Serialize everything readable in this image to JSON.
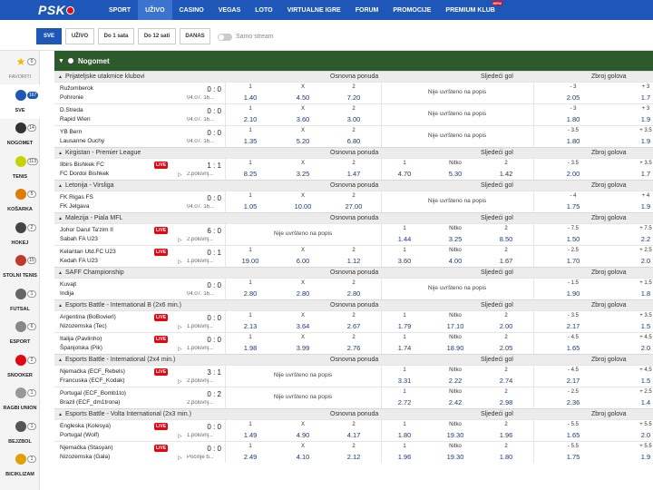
{
  "brand": {
    "logo": "PSK"
  },
  "nav": [
    {
      "label": "SPORT"
    },
    {
      "label": "UŽIVO"
    },
    {
      "label": "CASINO"
    },
    {
      "label": "VEGAS"
    },
    {
      "label": "LOTO"
    },
    {
      "label": "VIRTUALNE IGRE"
    },
    {
      "label": "FORUM"
    },
    {
      "label": "PROMOCIJE"
    },
    {
      "label": "PREMIUM KLUB"
    }
  ],
  "nav_active": "UŽIVO",
  "nav_badge": "NEW",
  "filters": [
    {
      "label": "SVE"
    },
    {
      "label": "UŽIVO"
    },
    {
      "label": "Do 1 sata"
    },
    {
      "label": "Do 12 sati"
    },
    {
      "label": "DANAS"
    }
  ],
  "stream_toggle": "Samo stream",
  "sidebar": [
    {
      "label": "FAVORITI",
      "count": "0",
      "icon": "star-icon"
    },
    {
      "label": "SVE",
      "count": "167",
      "icon": "all-sports-icon"
    },
    {
      "label": "NOGOMET",
      "count": "14",
      "icon": "football-icon"
    },
    {
      "label": "TENIS",
      "count": "113",
      "icon": "tennis-icon"
    },
    {
      "label": "KOŠARKA",
      "count": "5",
      "icon": "basketball-icon"
    },
    {
      "label": "HOKEJ",
      "count": "2",
      "icon": "hockey-icon"
    },
    {
      "label": "STOLNI TENIS",
      "count": "15",
      "icon": "table-tennis-icon"
    },
    {
      "label": "FUTSAL",
      "count": "1",
      "icon": "futsal-icon"
    },
    {
      "label": "ESPORT",
      "count": "6",
      "icon": "esport-icon"
    },
    {
      "label": "SNOOKER",
      "count": "2",
      "icon": "snooker-icon"
    },
    {
      "label": "RAGBI UNION",
      "count": "1",
      "icon": "rugby-icon"
    },
    {
      "label": "BEJZBOL",
      "count": "1",
      "icon": "baseball-icon"
    },
    {
      "label": "BICIKLIZAM",
      "count": "1",
      "icon": "cycling-icon"
    }
  ],
  "sport_header": "Nogomet",
  "col_headers": {
    "main": "Osnovna ponuda",
    "next": "Sljedeći gol",
    "total": "Zbroj golova"
  },
  "not_listed": "Nije uvršteno na popis",
  "leagues": [
    {
      "name": "Prijateljske utakmice klubovi",
      "matches": [
        {
          "t1": "Ružomberok",
          "t2": "Pohronie",
          "score": "0 : 0",
          "date": "04.07. 16...",
          "live": false,
          "main": [
            "1",
            "1.40",
            "X",
            "4.50",
            "2",
            "7.20"
          ],
          "next": null,
          "total": [
            "- 3",
            "2.05",
            "+ 3",
            "1.7"
          ]
        },
        {
          "t1": "D.Streda",
          "t2": "Rapid Wien",
          "score": "0 : 0",
          "date": "04.07. 16...",
          "live": false,
          "main": [
            "1",
            "2.10",
            "X",
            "3.60",
            "2",
            "3.00"
          ],
          "next": null,
          "total": [
            "- 3",
            "1.80",
            "+ 3",
            "1.9"
          ]
        },
        {
          "t1": "YB Bern",
          "t2": "Lausanne Ouchy",
          "score": "0 : 0",
          "date": "04.07. 16...",
          "live": false,
          "main": [
            "1",
            "1.35",
            "X",
            "5.20",
            "2",
            "6.80"
          ],
          "next": null,
          "total": [
            "- 3.5",
            "1.80",
            "+ 3.5",
            "1.9"
          ]
        }
      ]
    },
    {
      "name": "Kirgistan - Premier League",
      "matches": [
        {
          "t1": "Ilbirs Bishkek FC",
          "t2": "FC Dordoi Bishkek",
          "score": "1 : 1",
          "date": "2.poluvrij...",
          "live": true,
          "main": [
            "1",
            "8.25",
            "X",
            "3.25",
            "2",
            "1.47"
          ],
          "next": [
            "1",
            "4.70",
            "Nitko",
            "5.30",
            "2",
            "1.42"
          ],
          "total": [
            "- 3.5",
            "2.00",
            "+ 3.5",
            "1.7"
          ]
        }
      ]
    },
    {
      "name": "Letonija - Virsliga",
      "matches": [
        {
          "t1": "FK Rigas FS",
          "t2": "FK Jelgava",
          "score": "0 : 0",
          "date": "04.07. 16...",
          "live": false,
          "main": [
            "1",
            "1.05",
            "X",
            "10.00",
            "2",
            "27.00"
          ],
          "next": null,
          "total": [
            "- 4",
            "1.75",
            "+ 4",
            "1.9"
          ]
        }
      ]
    },
    {
      "name": "Malezija - Piala MFL",
      "matches": [
        {
          "t1": "Johor Darul Ta'zim II",
          "t2": "Sabah FA U23",
          "score": "6 : 0",
          "date": "2.poluvrij...",
          "live": true,
          "main": null,
          "next": [
            "1",
            "1.44",
            "Nitko",
            "3.25",
            "2",
            "8.50"
          ],
          "total": [
            "- 7.5",
            "1.50",
            "+ 7.5",
            "2.2"
          ]
        },
        {
          "t1": "Kelantan Utd.FC U23",
          "t2": "Kedah FA U23",
          "score": "0 : 1",
          "date": "1.poluvrij...",
          "live": true,
          "main": [
            "1",
            "19.00",
            "X",
            "6.00",
            "2",
            "1.12"
          ],
          "next": [
            "1",
            "3.60",
            "Nitko",
            "4.00",
            "2",
            "1.67"
          ],
          "total": [
            "- 2.5",
            "1.70",
            "+ 2.5",
            "2.0"
          ]
        }
      ]
    },
    {
      "name": "SAFF Championship",
      "matches": [
        {
          "t1": "Kuvajt",
          "t2": "Indija",
          "score": "0 : 0",
          "date": "04.07. 16...",
          "live": false,
          "main": [
            "1",
            "2.80",
            "X",
            "2.80",
            "2",
            "2.80"
          ],
          "next": null,
          "total": [
            "- 1.5",
            "1.90",
            "+ 1.5",
            "1.8"
          ]
        }
      ]
    },
    {
      "name": "Esports Battle - International B (2x6 min.)",
      "matches": [
        {
          "t1": "Argentina (BoBovierl)",
          "t2": "Nizozemska (Tec)",
          "score": "0 : 0",
          "date": "1.poluvrij...",
          "live": true,
          "main": [
            "1",
            "2.13",
            "X",
            "3.64",
            "2",
            "2.67"
          ],
          "next": [
            "1",
            "1.79",
            "Nitko",
            "17.10",
            "2",
            "2.00"
          ],
          "total": [
            "- 3.5",
            "2.17",
            "+ 3.5",
            "1.5"
          ]
        },
        {
          "t1": "Italija (Pavlinho)",
          "t2": "Španjolska (Pik)",
          "score": "0 : 0",
          "date": "1.poluvrij...",
          "live": true,
          "main": [
            "1",
            "1.98",
            "X",
            "3.99",
            "2",
            "2.76"
          ],
          "next": [
            "1",
            "1.74",
            "Nitko",
            "18.90",
            "2",
            "2.05"
          ],
          "total": [
            "- 4.5",
            "1.65",
            "+ 4.5",
            "2.0"
          ]
        }
      ]
    },
    {
      "name": "Esports Battle - International (2x4 min.)",
      "matches": [
        {
          "t1": "Njemačka (ECF_Rebels)",
          "t2": "Francuska (ECF_Kodak)",
          "score": "3 : 1",
          "date": "2.poluvrij...",
          "live": true,
          "main": null,
          "next": [
            "1",
            "3.31",
            "Nitko",
            "2.22",
            "2",
            "2.74"
          ],
          "total": [
            "- 4.5",
            "2.17",
            "+ 4.5",
            "1.5"
          ]
        },
        {
          "t1": "Portugal (ECF_Bomb1to)",
          "t2": "Brazil (ECF_dm1trona)",
          "score": "0 : 2",
          "date": "2.poluvrij...",
          "live": false,
          "main": null,
          "next": [
            "1",
            "2.72",
            "Nitko",
            "2.42",
            "2",
            "2.98"
          ],
          "total": [
            "- 2.5",
            "2.36",
            "+ 2.5",
            "1.4"
          ]
        }
      ]
    },
    {
      "name": "Esports Battle - Volta International (2x3 min.)",
      "matches": [
        {
          "t1": "Engleska (Kolesya)",
          "t2": "Portugal (Wolf)",
          "score": "0 : 0",
          "date": "1.poluvrij...",
          "live": true,
          "main": [
            "1",
            "1.49",
            "X",
            "4.90",
            "2",
            "4.17"
          ],
          "next": [
            "1",
            "1.80",
            "Nitko",
            "19.30",
            "2",
            "1.96"
          ],
          "total": [
            "- 5.5",
            "1.65",
            "+ 5.5",
            "2.0"
          ]
        },
        {
          "t1": "Njemačka (Stasyan)",
          "t2": "Nizozemska (Gala)",
          "score": "0 : 0",
          "date": "Počinje b...",
          "live": true,
          "main": [
            "1",
            "2.49",
            "X",
            "4.10",
            "2",
            "2.12"
          ],
          "next": [
            "1",
            "1.96",
            "Nitko",
            "19.30",
            "2",
            "1.80"
          ],
          "total": [
            "- 5.5",
            "1.75",
            "+ 5.5",
            "1.9"
          ]
        }
      ]
    }
  ]
}
